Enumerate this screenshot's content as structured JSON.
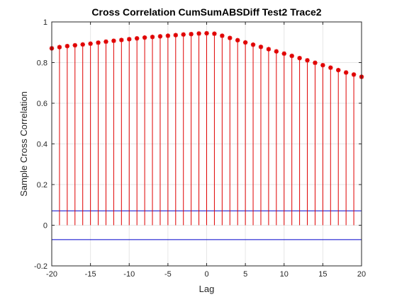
{
  "chart_data": {
    "type": "stem",
    "title": "Cross Correlation CumSumABSDiff Test2 Trace2",
    "xlabel": "Lag",
    "ylabel": "Sample Cross Correlation",
    "xlim": [
      -20,
      20
    ],
    "ylim": [
      -0.2,
      1
    ],
    "xticks": [
      -20,
      -15,
      -10,
      -5,
      0,
      5,
      10,
      15,
      20
    ],
    "yticks": [
      -0.2,
      0,
      0.2,
      0.4,
      0.6,
      0.8,
      1
    ],
    "xtick_labels": [
      "-20",
      "-15",
      "-10",
      "-5",
      "0",
      "5",
      "10",
      "15",
      "20"
    ],
    "ytick_labels": [
      "-0.2",
      "0",
      "0.2",
      "0.4",
      "0.6",
      "0.8",
      "1"
    ],
    "grid": true,
    "series": [
      {
        "color": "#e00000",
        "marker": "asterisk",
        "x": [
          -20,
          -19,
          -18,
          -17,
          -16,
          -15,
          -14,
          -13,
          -12,
          -11,
          -10,
          -9,
          -8,
          -7,
          -6,
          -5,
          -4,
          -3,
          -2,
          -1,
          0,
          1,
          2,
          3,
          4,
          5,
          6,
          7,
          8,
          9,
          10,
          11,
          12,
          13,
          14,
          15,
          16,
          17,
          18,
          19,
          20
        ],
        "values": [
          0.87,
          0.876,
          0.881,
          0.885,
          0.889,
          0.893,
          0.898,
          0.903,
          0.907,
          0.911,
          0.915,
          0.919,
          0.923,
          0.926,
          0.929,
          0.932,
          0.935,
          0.938,
          0.94,
          0.943,
          0.944,
          0.942,
          0.932,
          0.921,
          0.91,
          0.899,
          0.888,
          0.877,
          0.866,
          0.855,
          0.844,
          0.833,
          0.822,
          0.811,
          0.799,
          0.787,
          0.775,
          0.763,
          0.751,
          0.741,
          0.73
        ]
      }
    ],
    "bounds": {
      "color": "#0000cc",
      "values": [
        0.0707,
        -0.0707
      ]
    }
  }
}
